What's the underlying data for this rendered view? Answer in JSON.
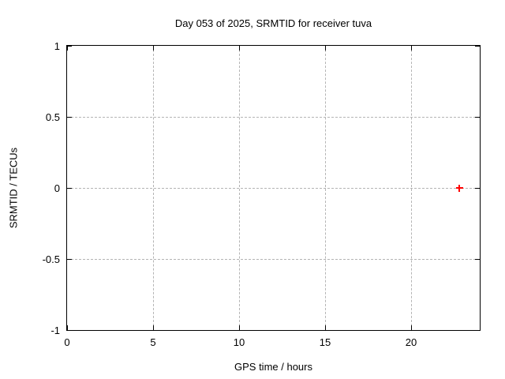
{
  "chart_data": {
    "type": "scatter",
    "title": "Day 053 of 2025, SRMTID for receiver tuva",
    "xlabel": "GPS time / hours",
    "ylabel": "SRMTID / TECUs",
    "xlim": [
      0,
      24
    ],
    "ylim": [
      -1,
      1
    ],
    "xticks": [
      0,
      5,
      10,
      15,
      20
    ],
    "yticks": [
      1,
      0.5,
      0,
      -0.5,
      -1
    ],
    "xtick_labels": [
      "0",
      "5",
      "10",
      "15",
      "20"
    ],
    "ytick_labels": [
      "1",
      "0.5",
      "0",
      "-0.5",
      "-1"
    ],
    "grid": true,
    "grid_style": "dashed",
    "legend": "none",
    "series": [
      {
        "name": "SRMTID",
        "marker": "plus",
        "color": "#ff0000",
        "points": [
          {
            "x": 22.8,
            "y": 0.0
          }
        ]
      }
    ],
    "colors": {
      "background": "#ffffff",
      "border": "#000000",
      "grid": "#b4b4b4",
      "text": "#000000",
      "marker": "#ff0000"
    }
  }
}
